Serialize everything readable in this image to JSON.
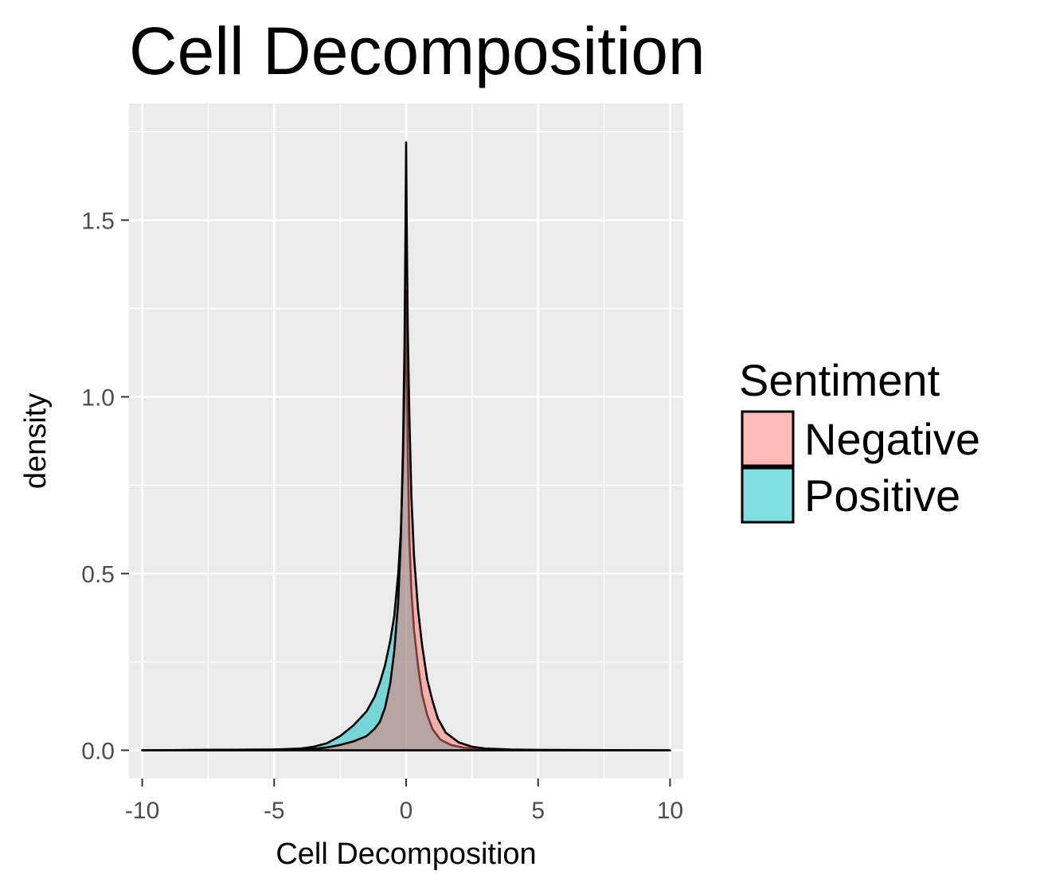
{
  "chart_data": {
    "type": "area",
    "title": "Cell Decomposition",
    "xlabel": "Cell Decomposition",
    "ylabel": "density",
    "xlim": [
      -10.5,
      10.5
    ],
    "ylim": [
      -0.08,
      1.83
    ],
    "x_ticks": [
      -10,
      -5,
      0,
      5,
      10
    ],
    "x_tick_labels": [
      "-10",
      "-5",
      "0",
      "5",
      "10"
    ],
    "y_ticks": [
      0.0,
      0.5,
      1.0,
      1.5
    ],
    "y_tick_labels": [
      "0.0",
      "0.5",
      "1.0",
      "1.5"
    ],
    "grid": true,
    "legend": {
      "title": "Sentiment",
      "position": "right"
    },
    "series": [
      {
        "name": "Negative",
        "color": "#F8766D",
        "points": [
          [
            -10,
            0
          ],
          [
            -5,
            0.002
          ],
          [
            -3.5,
            0.004
          ],
          [
            -3,
            0.008
          ],
          [
            -2.5,
            0.015
          ],
          [
            -2,
            0.025
          ],
          [
            -1.5,
            0.04
          ],
          [
            -1.2,
            0.06
          ],
          [
            -1,
            0.08
          ],
          [
            -0.8,
            0.12
          ],
          [
            -0.6,
            0.19
          ],
          [
            -0.45,
            0.28
          ],
          [
            -0.3,
            0.42
          ],
          [
            -0.2,
            0.6
          ],
          [
            -0.12,
            0.85
          ],
          [
            -0.06,
            1.15
          ],
          [
            -0.02,
            1.5
          ],
          [
            0,
            1.72
          ],
          [
            0.02,
            1.5
          ],
          [
            0.06,
            1.2
          ],
          [
            0.12,
            0.95
          ],
          [
            0.2,
            0.72
          ],
          [
            0.3,
            0.55
          ],
          [
            0.45,
            0.4
          ],
          [
            0.6,
            0.3
          ],
          [
            0.8,
            0.2
          ],
          [
            1,
            0.14
          ],
          [
            1.2,
            0.09
          ],
          [
            1.5,
            0.05
          ],
          [
            2,
            0.022
          ],
          [
            2.5,
            0.01
          ],
          [
            3,
            0.005
          ],
          [
            4,
            0.002
          ],
          [
            5,
            0.001
          ],
          [
            10,
            0
          ]
        ]
      },
      {
        "name": "Positive",
        "color": "#00BFC4",
        "points": [
          [
            -10,
            0
          ],
          [
            -5,
            0.002
          ],
          [
            -4,
            0.005
          ],
          [
            -3.5,
            0.01
          ],
          [
            -3,
            0.02
          ],
          [
            -2.5,
            0.04
          ],
          [
            -2,
            0.07
          ],
          [
            -1.5,
            0.11
          ],
          [
            -1.2,
            0.15
          ],
          [
            -1,
            0.19
          ],
          [
            -0.8,
            0.24
          ],
          [
            -0.6,
            0.31
          ],
          [
            -0.45,
            0.38
          ],
          [
            -0.3,
            0.5
          ],
          [
            -0.2,
            0.62
          ],
          [
            -0.12,
            0.8
          ],
          [
            -0.06,
            1.0
          ],
          [
            -0.02,
            1.2
          ],
          [
            0,
            1.3
          ],
          [
            0.02,
            1.15
          ],
          [
            0.06,
            0.85
          ],
          [
            0.12,
            0.6
          ],
          [
            0.2,
            0.45
          ],
          [
            0.3,
            0.34
          ],
          [
            0.45,
            0.24
          ],
          [
            0.6,
            0.16
          ],
          [
            0.8,
            0.1
          ],
          [
            1,
            0.06
          ],
          [
            1.3,
            0.03
          ],
          [
            1.7,
            0.015
          ],
          [
            2.2,
            0.007
          ],
          [
            3,
            0.003
          ],
          [
            4,
            0.001
          ],
          [
            10,
            0
          ]
        ]
      }
    ]
  }
}
